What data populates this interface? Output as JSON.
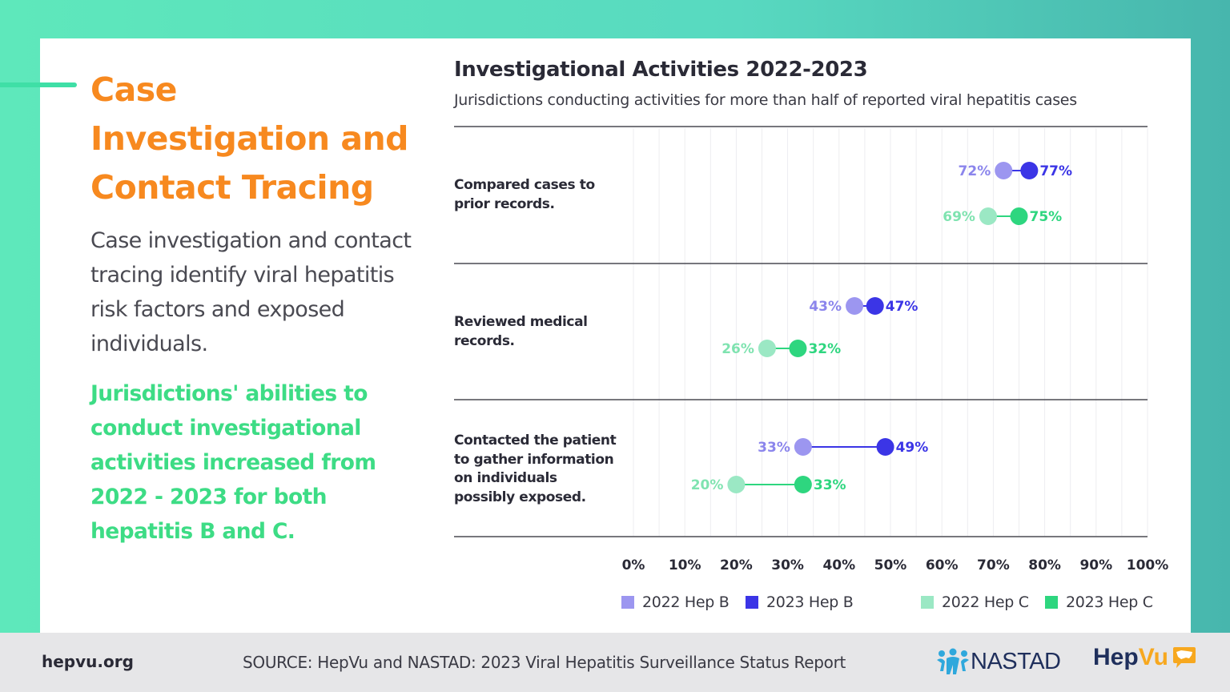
{
  "left_panel": {
    "title": "Case Investigation and Contact Tracing",
    "body": "Case investigation and contact tracing identify viral hepatitis risk factors and exposed individuals.",
    "highlight": "Jurisdictions' abilities to conduct investigational activities increased from 2022 - 2023 for both hepatitis B and C."
  },
  "footer": {
    "site": "hepvu.org",
    "source": "SOURCE: HepVu and NASTAD: 2023 Viral Hepatitis Surveillance Status Report",
    "logo_nastad": "NASTAD",
    "logo_hepvu_a": "Hep",
    "logo_hepvu_b": "Vu"
  },
  "colors": {
    "title_orange": "#f7891f",
    "highlight_green": "#3ddc85",
    "hepb_2022": "#9c96f0",
    "hepb_2023": "#3b35e6",
    "hepc_2022": "#9be8c4",
    "hepc_2023": "#2ed67f",
    "hepb_label_2022": "#8b85ec",
    "hepb_label_2023": "#3b35e6",
    "hepc_label_2022": "#7fe3b0",
    "hepc_label_2023": "#2ed67f"
  },
  "chart_data": {
    "type": "dumbbell",
    "title": "Investigational Activities 2022-2023",
    "subtitle": "Jurisdictions conducting activities for more than half of reported viral hepatitis cases",
    "xlim": [
      0,
      100
    ],
    "x_ticks": [
      "0%",
      "10%",
      "20%",
      "30%",
      "40%",
      "50%",
      "60%",
      "70%",
      "80%",
      "90%",
      "100%"
    ],
    "grid": true,
    "legend_position": "bottom",
    "legend": [
      "2022 Hep B",
      "2023 Hep B",
      "2022 Hep C",
      "2023 Hep C"
    ],
    "categories": [
      "Compared cases to prior records.",
      "Reviewed medical records.",
      "Contacted the patient to gather information on individuals possibly exposed."
    ],
    "series": [
      {
        "name": "Hep B",
        "start_label": "2022 Hep B",
        "end_label": "2023 Hep B",
        "start": [
          72,
          43,
          33
        ],
        "end": [
          77,
          47,
          49
        ]
      },
      {
        "name": "Hep C",
        "start_label": "2022 Hep C",
        "end_label": "2023 Hep C",
        "start": [
          69,
          26,
          20
        ],
        "end": [
          75,
          32,
          33
        ]
      }
    ]
  }
}
